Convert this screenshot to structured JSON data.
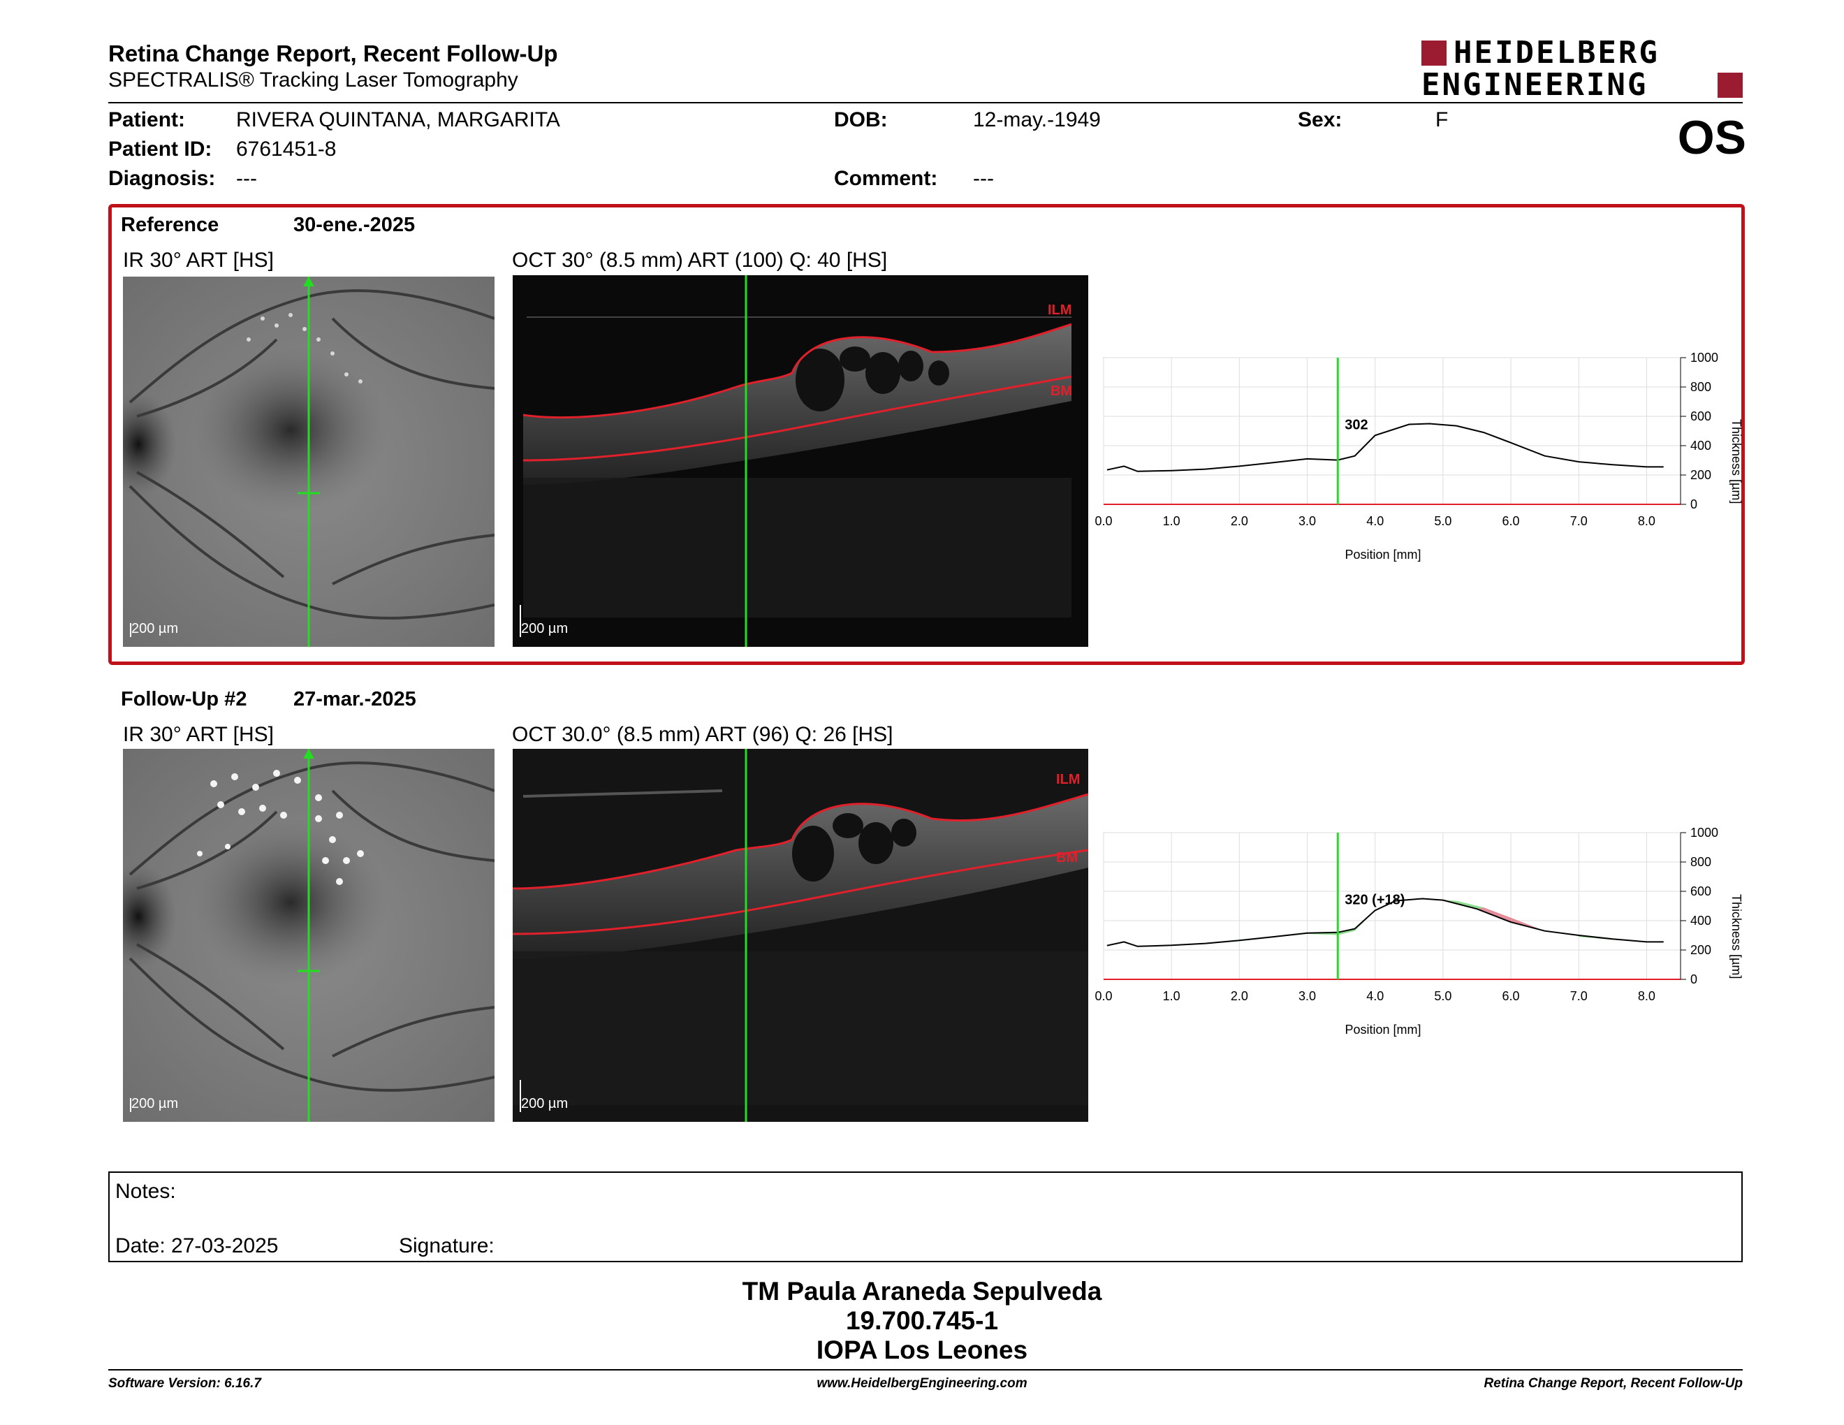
{
  "header": {
    "title": "Retina Change Report, Recent Follow-Up",
    "subtitle": "SPECTRALIS® Tracking Laser Tomography",
    "logo_line1": "HEIDELBERG",
    "logo_line2": "ENGINEERING",
    "eye": "OS"
  },
  "patient": {
    "name_label": "Patient:",
    "name": "RIVERA QUINTANA, MARGARITA",
    "id_label": "Patient ID:",
    "id": "6761451-8",
    "diagnosis_label": "Diagnosis:",
    "diagnosis": "---",
    "dob_label": "DOB:",
    "dob": "12-may.-1949",
    "comment_label": "Comment:",
    "comment": "---",
    "sex_label": "Sex:",
    "sex": "F"
  },
  "reference": {
    "label": "Reference",
    "date": "30-ene.-2025",
    "ir_caption": "IR 30° ART [HS]",
    "oct_caption": "OCT 30° (8.5 mm) ART (100) Q: 40 [HS]",
    "ir_scale": "200 µm",
    "oct_scale": "200 µm",
    "ilm_label": "ILM",
    "bm_label": "BM",
    "marker_value": "302"
  },
  "followup": {
    "label": "Follow-Up #2",
    "date": "27-mar.-2025",
    "ir_caption": "IR 30° ART [HS]",
    "oct_caption": "OCT 30.0° (8.5 mm) ART (96) Q: 26 [HS]",
    "ir_scale": "200 µm",
    "oct_scale": "200 µm",
    "ilm_label": "ILM",
    "bm_label": "BM",
    "marker_value": "320 (+18)"
  },
  "chart_data": [
    {
      "type": "line",
      "title": "",
      "xlabel": "Position [mm]",
      "ylabel": "Thickness [µm]",
      "xlim": [
        0,
        8.5
      ],
      "ylim": [
        0,
        1000
      ],
      "xticks": [
        "0.0",
        "1.0",
        "2.0",
        "3.0",
        "4.0",
        "5.0",
        "6.0",
        "7.0",
        "8.0"
      ],
      "yticks": [
        "0",
        "200",
        "400",
        "600",
        "800",
        "1000"
      ],
      "grid": true,
      "marker_x": 3.45,
      "marker_label": "302",
      "series": [
        {
          "x": [
            0.05,
            0.3,
            0.5,
            1.0,
            1.5,
            2.0,
            2.5,
            3.0,
            3.45,
            3.7,
            4.0,
            4.5,
            4.8,
            5.2,
            5.6,
            6.0,
            6.5,
            7.0,
            7.5,
            8.0,
            8.25
          ],
          "y": [
            235,
            260,
            225,
            230,
            240,
            260,
            285,
            310,
            302,
            330,
            470,
            545,
            550,
            535,
            490,
            420,
            330,
            290,
            270,
            255,
            255
          ]
        }
      ]
    },
    {
      "type": "line",
      "title": "",
      "xlabel": "Position [mm]",
      "ylabel": "Thickness [µm]",
      "xlim": [
        0,
        8.5
      ],
      "ylim": [
        0,
        1000
      ],
      "xticks": [
        "0.0",
        "1.0",
        "2.0",
        "3.0",
        "4.0",
        "5.0",
        "6.0",
        "7.0",
        "8.0"
      ],
      "yticks": [
        "0",
        "200",
        "400",
        "600",
        "800",
        "1000"
      ],
      "grid": true,
      "marker_x": 3.45,
      "marker_label": "320 (+18)",
      "series": [
        {
          "x": [
            0.05,
            0.3,
            0.5,
            1.0,
            1.5,
            2.0,
            2.5,
            3.0,
            3.45,
            3.7,
            4.0,
            4.3,
            4.7,
            5.0,
            5.5,
            6.0,
            6.5,
            7.0,
            7.5,
            8.0,
            8.25
          ],
          "y": [
            230,
            255,
            225,
            232,
            245,
            265,
            290,
            315,
            320,
            345,
            470,
            535,
            550,
            540,
            480,
            390,
            330,
            300,
            275,
            255,
            255
          ]
        }
      ]
    }
  ],
  "notes": {
    "label": "Notes:",
    "date_line": "Date: 27-03-2025",
    "signature_label": "Signature:"
  },
  "signature_block": {
    "name": "TM Paula Araneda Sepulveda",
    "rut": "19.700.745-1",
    "org": "IOPA Los Leones"
  },
  "footer": {
    "software": "Software Version: 6.16.7",
    "url": "www.HeidelbergEngineering.com",
    "report": "Retina Change Report, Recent Follow-Up"
  },
  "colors": {
    "brand": "#9b1b30",
    "ref_frame": "#c0101a",
    "scan_line": "#22dd22",
    "layer_line": "#e0202a",
    "increase": "#7ad77a",
    "decrease": "#e07a8a"
  }
}
